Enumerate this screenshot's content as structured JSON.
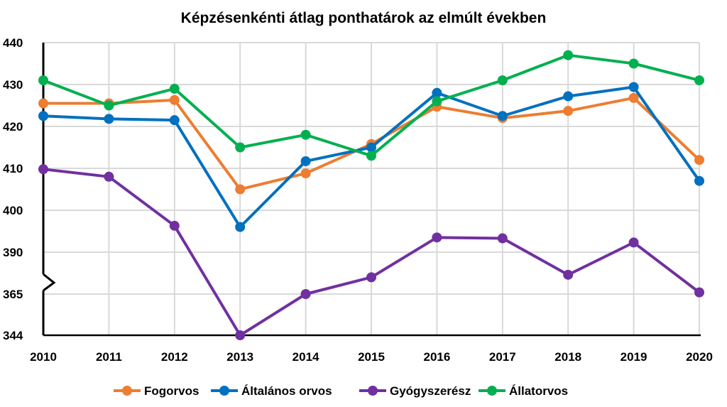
{
  "chart_data": {
    "type": "line",
    "title": "Képzésenkénti átlag ponthatárok az elmúlt években",
    "xlabel": "",
    "ylabel": "",
    "x": [
      "2010",
      "2011",
      "2012",
      "2013",
      "2014",
      "2015",
      "2016",
      "2017",
      "2018",
      "2019",
      "2020"
    ],
    "y_ticks": [
      "440",
      "430",
      "420",
      "410",
      "400",
      "390",
      "365",
      "344"
    ],
    "axis_break": "between 390 and 365",
    "grid": true,
    "legend_position": "bottom",
    "series": [
      {
        "name": "Fogorvos",
        "color": "#ED7D31",
        "values": [
          425.5,
          425.5,
          426.3,
          405,
          408.8,
          415.8,
          424.7,
          422,
          423.7,
          426.8,
          412
        ]
      },
      {
        "name": "Általános orvos",
        "color": "#0070C0",
        "values": [
          422.5,
          421.8,
          421.5,
          396,
          411.7,
          415,
          428,
          422.5,
          427.2,
          429.4,
          407
        ]
      },
      {
        "name": "Gyógyszerész",
        "color": "#7030A0",
        "values": [
          409.8,
          408,
          396.3,
          344,
          365,
          375,
          393.5,
          393.3,
          376.5,
          392.3,
          366
        ]
      },
      {
        "name": "Állatorvos",
        "color": "#00B050",
        "values": [
          431,
          425,
          429,
          415,
          418,
          413,
          426,
          431,
          437,
          435,
          431
        ]
      }
    ]
  }
}
